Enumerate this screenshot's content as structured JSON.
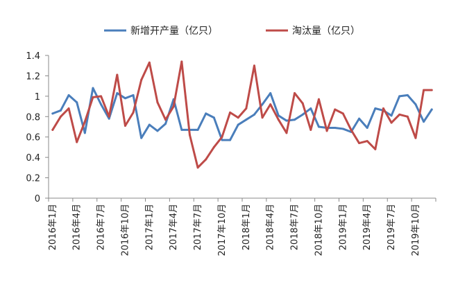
{
  "chart_data": {
    "type": "line",
    "title": "",
    "xlabel": "",
    "ylabel": "",
    "ylim": [
      0,
      1.4
    ],
    "yticks": [
      "0",
      "0.2",
      "0.4",
      "0.6",
      "0.8",
      "1",
      "1.2",
      "1.4"
    ],
    "grid": false,
    "legend_position": "top",
    "x": [
      "2016年1月",
      "2016年2月",
      "2016年3月",
      "2016年4月",
      "2016年5月",
      "2016年6月",
      "2016年7月",
      "2016年8月",
      "2016年9月",
      "2016年10月",
      "2016年11月",
      "2016年12月",
      "2017年1月",
      "2017年2月",
      "2017年3月",
      "2017年4月",
      "2017年5月",
      "2017年6月",
      "2017年7月",
      "2017年8月",
      "2017年9月",
      "2017年10月",
      "2017年11月",
      "2017年12月",
      "2018年1月",
      "2018年2月",
      "2018年3月",
      "2018年4月",
      "2018年5月",
      "2018年6月",
      "2018年7月",
      "2018年8月",
      "2018年9月",
      "2018年10月",
      "2018年11月",
      "2018年12月",
      "2019年1月",
      "2019年2月",
      "2019年3月",
      "2019年4月",
      "2019年5月",
      "2019年6月",
      "2019年7月",
      "2019年8月",
      "2019年9月",
      "2019年10月",
      "2019年11月",
      "2019年12月"
    ],
    "xtick_labels": [
      "2016年1月",
      "2016年4月",
      "2016年7月",
      "2016年10月",
      "2017年1月",
      "2017年4月",
      "2017年7月",
      "2017年10月",
      "2018年1月",
      "2018年4月",
      "2018年7月",
      "2018年10月",
      "2019年1月",
      "2019年4月",
      "2019年7月",
      "2019年10月"
    ],
    "series": [
      {
        "name": "新增开产量（亿只）",
        "color": "#4a7ebb",
        "values": [
          0.83,
          0.86,
          1.01,
          0.94,
          0.64,
          1.08,
          0.92,
          0.78,
          1.03,
          0.98,
          1.01,
          0.59,
          0.72,
          0.66,
          0.73,
          0.97,
          0.67,
          0.67,
          0.67,
          0.83,
          0.79,
          0.57,
          0.57,
          0.72,
          0.77,
          0.82,
          0.92,
          1.03,
          0.81,
          0.76,
          0.77,
          0.82,
          0.88,
          0.7,
          0.69,
          0.69,
          0.68,
          0.65,
          0.78,
          0.69,
          0.88,
          0.86,
          0.81,
          1.0,
          1.01,
          0.92,
          0.75,
          0.87
        ]
      },
      {
        "name": "淘汰量（亿只）",
        "color": "#be4b48",
        "values": [
          0.67,
          0.8,
          0.88,
          0.55,
          0.75,
          0.99,
          1.0,
          0.8,
          1.21,
          0.71,
          0.84,
          1.16,
          1.33,
          0.94,
          0.77,
          0.9,
          1.34,
          0.62,
          0.3,
          0.38,
          0.5,
          0.6,
          0.84,
          0.79,
          0.88,
          1.3,
          0.79,
          0.92,
          0.77,
          0.64,
          1.03,
          0.93,
          0.67,
          0.97,
          0.66,
          0.87,
          0.83,
          0.67,
          0.54,
          0.56,
          0.48,
          0.88,
          0.74,
          0.82,
          0.8,
          0.59,
          1.06,
          1.06
        ]
      }
    ]
  }
}
